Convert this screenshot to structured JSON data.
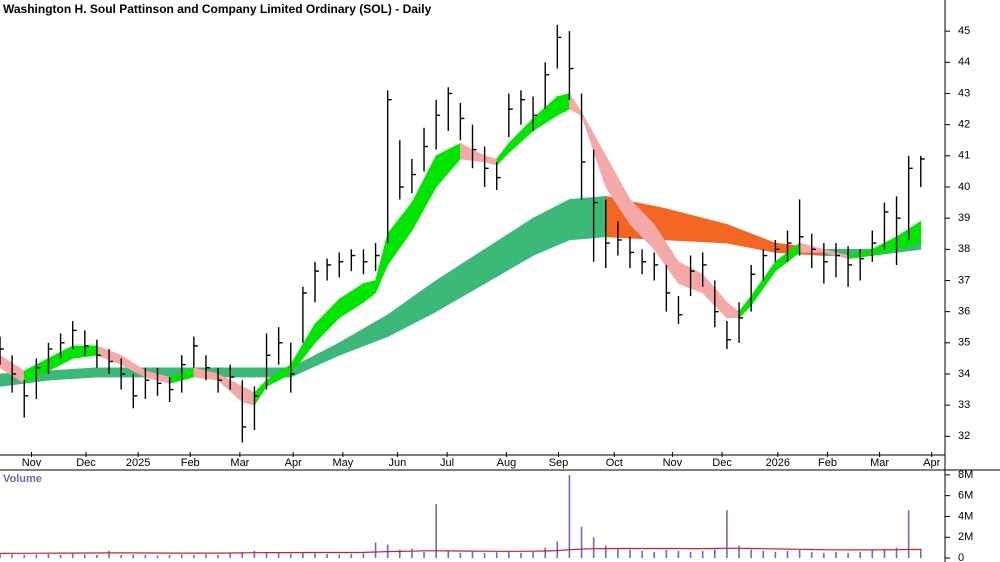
{
  "chart_data": [
    {
      "type": "ohlc",
      "title": "Washington H. Soul Pattinson and Company Limited Ordinary (SOL) - Daily",
      "color": "#000000",
      "x": [
        0,
        1,
        2,
        3,
        4,
        5,
        6,
        7,
        8,
        9,
        10,
        11,
        12,
        13,
        14,
        15,
        16,
        17,
        18,
        19,
        20,
        21,
        22,
        23,
        24,
        25,
        26,
        27,
        28,
        29,
        30,
        31,
        32,
        33,
        34,
        35,
        36,
        37,
        38,
        39,
        40,
        41,
        42,
        43,
        44,
        45,
        46,
        47,
        48,
        49,
        50,
        51,
        52,
        53,
        54,
        55,
        56,
        57,
        58,
        59,
        60,
        61,
        62,
        63,
        64,
        65,
        66,
        67,
        68,
        69,
        70,
        71,
        72,
        73,
        74,
        75,
        76
      ],
      "high": [
        35.2,
        34.6,
        33.8,
        34.5,
        35.0,
        35.3,
        35.7,
        35.4,
        35.1,
        34.8,
        34.5,
        34.0,
        34.2,
        34.2,
        33.9,
        34.6,
        35.2,
        34.6,
        34.2,
        34.3,
        33.8,
        33.6,
        35.3,
        35.5,
        35.0,
        36.8,
        37.6,
        37.7,
        37.9,
        38.0,
        38.0,
        38.2,
        43.1,
        41.5,
        40.9,
        41.9,
        42.8,
        43.2,
        42.7,
        42.0,
        41.3,
        40.8,
        43.0,
        43.1,
        42.9,
        44.0,
        45.2,
        45.0,
        43.0,
        41.2,
        39.6,
        38.9,
        38.4,
        38.0,
        37.9,
        37.5,
        36.5,
        37.8,
        37.9,
        37.0,
        35.7,
        36.3,
        37.5,
        38.0,
        38.3,
        38.6,
        39.6,
        38.5,
        38.2,
        38.2,
        38.1,
        38.0,
        38.6,
        39.5,
        39.7,
        41.0,
        41.0
      ],
      "low": [
        34.3,
        33.4,
        32.6,
        33.2,
        34.0,
        34.5,
        34.8,
        34.6,
        34.2,
        34.0,
        33.5,
        32.9,
        33.2,
        33.3,
        33.1,
        33.4,
        34.2,
        33.8,
        33.4,
        33.5,
        31.8,
        32.2,
        33.5,
        34.3,
        33.4,
        35.0,
        36.3,
        37.0,
        37.1,
        37.3,
        37.2,
        37.3,
        38.2,
        39.6,
        39.8,
        40.5,
        41.2,
        41.8,
        41.5,
        40.6,
        40.0,
        39.9,
        41.6,
        42.0,
        41.8,
        42.5,
        43.8,
        42.8,
        39.6,
        37.6,
        37.4,
        37.8,
        37.4,
        37.2,
        37.0,
        36.0,
        35.6,
        36.5,
        36.8,
        35.5,
        34.8,
        35.0,
        36.0,
        37.0,
        37.6,
        37.6,
        37.8,
        37.4,
        36.9,
        37.1,
        36.8,
        37.0,
        37.6,
        38.0,
        37.5,
        38.3,
        40.0
      ],
      "close": [
        34.8,
        34.0,
        33.3,
        34.2,
        34.8,
        35.0,
        35.4,
        34.9,
        34.6,
        34.4,
        34.0,
        33.3,
        33.8,
        33.7,
        33.5,
        34.3,
        34.9,
        34.2,
        33.8,
        33.9,
        32.3,
        33.3,
        34.6,
        35.0,
        34.0,
        36.6,
        37.3,
        37.5,
        37.6,
        37.8,
        37.6,
        37.8,
        42.8,
        40.0,
        40.4,
        41.3,
        42.3,
        43.0,
        42.2,
        41.2,
        40.6,
        40.3,
        42.5,
        42.8,
        42.3,
        43.6,
        44.8,
        43.8,
        40.8,
        39.5,
        38.2,
        38.3,
        37.9,
        37.6,
        37.5,
        36.6,
        35.9,
        37.3,
        37.5,
        36.0,
        35.1,
        35.8,
        37.2,
        37.8,
        38.0,
        38.2,
        38.4,
        38.0,
        37.6,
        37.8,
        37.5,
        37.7,
        38.2,
        39.2,
        39.0,
        40.6,
        40.9
      ],
      "xlim": [
        0,
        78
      ],
      "xticks": [
        {
          "value": 2.6,
          "label": "Nov"
        },
        {
          "value": 7.1,
          "label": "Dec"
        },
        {
          "value": 11.4,
          "label": "2025"
        },
        {
          "value": 15.7,
          "label": "Feb"
        },
        {
          "value": 19.8,
          "label": "Mar"
        },
        {
          "value": 24.2,
          "label": "Apr"
        },
        {
          "value": 28.3,
          "label": "May"
        },
        {
          "value": 32.8,
          "label": "Jun"
        },
        {
          "value": 36.9,
          "label": "Jul"
        },
        {
          "value": 41.8,
          "label": "Aug"
        },
        {
          "value": 46.1,
          "label": "Sep"
        },
        {
          "value": 50.7,
          "label": "Oct"
        },
        {
          "value": 55.5,
          "label": "Nov"
        },
        {
          "value": 59.6,
          "label": "Dec"
        },
        {
          "value": 64.2,
          "label": "2026"
        },
        {
          "value": 68.3,
          "label": "Feb"
        },
        {
          "value": 72.6,
          "label": "Mar"
        },
        {
          "value": 76.9,
          "label": "Apr"
        }
      ],
      "ylim": [
        31.4,
        46
      ],
      "yticks": [
        32,
        33,
        34,
        35,
        36,
        37,
        38,
        39,
        40,
        41,
        42,
        43,
        44,
        45
      ],
      "ribbons": [
        {
          "x": [
            0,
            4,
            8,
            12,
            16,
            20,
            24,
            28,
            32,
            36,
            40,
            44,
            47,
            50,
            55,
            60,
            64,
            68,
            72,
            76
          ],
          "upper": [
            34.0,
            34.1,
            34.2,
            34.2,
            34.2,
            34.2,
            34.2,
            35.0,
            35.9,
            37.0,
            38.0,
            39.0,
            39.6,
            39.7,
            39.3,
            38.8,
            38.2,
            38.0,
            38.0,
            38.2
          ],
          "lower": [
            33.6,
            33.8,
            33.9,
            33.9,
            33.9,
            33.9,
            33.9,
            34.6,
            35.2,
            36.0,
            36.9,
            37.8,
            38.3,
            38.4,
            38.3,
            38.2,
            37.9,
            37.8,
            37.8,
            38.0
          ],
          "up_color": "#3cb878",
          "down_color": "#f26522"
        },
        {
          "x": [
            0,
            2,
            4,
            6,
            8,
            10,
            12,
            14,
            16,
            18,
            20,
            21,
            22,
            24,
            26,
            28,
            30,
            31,
            32,
            34,
            36,
            38,
            40,
            41,
            42,
            44,
            46,
            47,
            48,
            50,
            52,
            54,
            56,
            58,
            60,
            61,
            62,
            64,
            66,
            68,
            70,
            72,
            74,
            76
          ],
          "upper": [
            34.6,
            34.1,
            34.5,
            34.9,
            34.9,
            34.6,
            34.1,
            33.9,
            34.2,
            34.0,
            33.6,
            33.4,
            33.8,
            34.3,
            35.6,
            36.4,
            36.9,
            37.0,
            38.5,
            39.5,
            41.0,
            41.4,
            41.0,
            40.9,
            41.4,
            42.2,
            42.9,
            43.0,
            42.4,
            41.0,
            39.6,
            38.8,
            37.6,
            37.2,
            36.3,
            36.0,
            36.5,
            37.6,
            38.2,
            38.0,
            37.8,
            38.0,
            38.4,
            38.9
          ],
          "lower": [
            34.2,
            33.7,
            34.1,
            34.5,
            34.6,
            34.3,
            33.9,
            33.7,
            33.9,
            33.8,
            33.1,
            33.0,
            33.6,
            34.0,
            35.0,
            35.8,
            36.3,
            36.6,
            37.5,
            38.6,
            40.0,
            40.9,
            40.8,
            40.7,
            41.1,
            41.8,
            42.3,
            42.5,
            42.3,
            40.0,
            38.8,
            38.0,
            36.9,
            36.6,
            35.8,
            35.8,
            36.2,
            37.3,
            37.9,
            37.9,
            37.7,
            37.8,
            38.0,
            38.2
          ],
          "up_color": "#00e600",
          "down_color": "#f5a8a8"
        }
      ]
    },
    {
      "type": "bar",
      "title": "Volume",
      "color": "#6a6ac8",
      "x": [
        0,
        1,
        2,
        3,
        4,
        5,
        6,
        7,
        8,
        9,
        10,
        11,
        12,
        13,
        14,
        15,
        16,
        17,
        18,
        19,
        20,
        21,
        22,
        23,
        24,
        25,
        26,
        27,
        28,
        29,
        30,
        31,
        32,
        33,
        34,
        35,
        36,
        37,
        38,
        39,
        40,
        41,
        42,
        43,
        44,
        45,
        46,
        47,
        48,
        49,
        50,
        51,
        52,
        53,
        54,
        55,
        56,
        57,
        58,
        59,
        60,
        61,
        62,
        63,
        64,
        65,
        66,
        67,
        68,
        69,
        70,
        71,
        72,
        73,
        74,
        75,
        76
      ],
      "values": [
        400000,
        350000,
        300000,
        350000,
        400000,
        300000,
        450000,
        350000,
        300000,
        700000,
        300000,
        350000,
        300000,
        250000,
        300000,
        350000,
        300000,
        350000,
        300000,
        450000,
        600000,
        700000,
        500000,
        450000,
        400000,
        500000,
        450000,
        400000,
        350000,
        400000,
        450000,
        1500000,
        1300000,
        800000,
        900000,
        600000,
        5200000,
        700000,
        500000,
        600000,
        500000,
        550000,
        600000,
        500000,
        600000,
        1000000,
        1600000,
        8000000,
        3000000,
        2000000,
        1200000,
        900000,
        800000,
        700000,
        600000,
        800000,
        700000,
        600000,
        700000,
        800000,
        4600000,
        1200000,
        800000,
        700000,
        600000,
        700000,
        800000,
        600000,
        500000,
        600000,
        500000,
        600000,
        800000,
        900000,
        1000000,
        4600000,
        900000
      ],
      "average": {
        "color": "#cc2222",
        "values": [
          450000,
          460000,
          460000,
          470000,
          470000,
          480000,
          480000,
          490000,
          490000,
          500000,
          500000,
          500000,
          490000,
          490000,
          480000,
          480000,
          480000,
          480000,
          480000,
          490000,
          500000,
          510000,
          520000,
          520000,
          520000,
          530000,
          530000,
          530000,
          530000,
          530000,
          540000,
          580000,
          620000,
          640000,
          660000,
          700000,
          700000,
          690000,
          680000,
          670000,
          660000,
          650000,
          650000,
          650000,
          660000,
          680000,
          720000,
          800000,
          860000,
          900000,
          910000,
          920000,
          920000,
          920000,
          920000,
          920000,
          920000,
          910000,
          910000,
          920000,
          950000,
          940000,
          920000,
          900000,
          880000,
          860000,
          840000,
          820000,
          800000,
          790000,
          780000,
          780000,
          780000,
          790000,
          800000,
          820000,
          820000
        ]
      },
      "xlim": [
        0,
        78
      ],
      "ylim": [
        -380000,
        8470000
      ],
      "yticks": [
        {
          "value": 0,
          "label": "0"
        },
        {
          "value": 2000000,
          "label": "2M"
        },
        {
          "value": 4000000,
          "label": "4M"
        },
        {
          "value": 6000000,
          "label": "6M"
        },
        {
          "value": 8000000,
          "label": "8M"
        }
      ]
    }
  ]
}
